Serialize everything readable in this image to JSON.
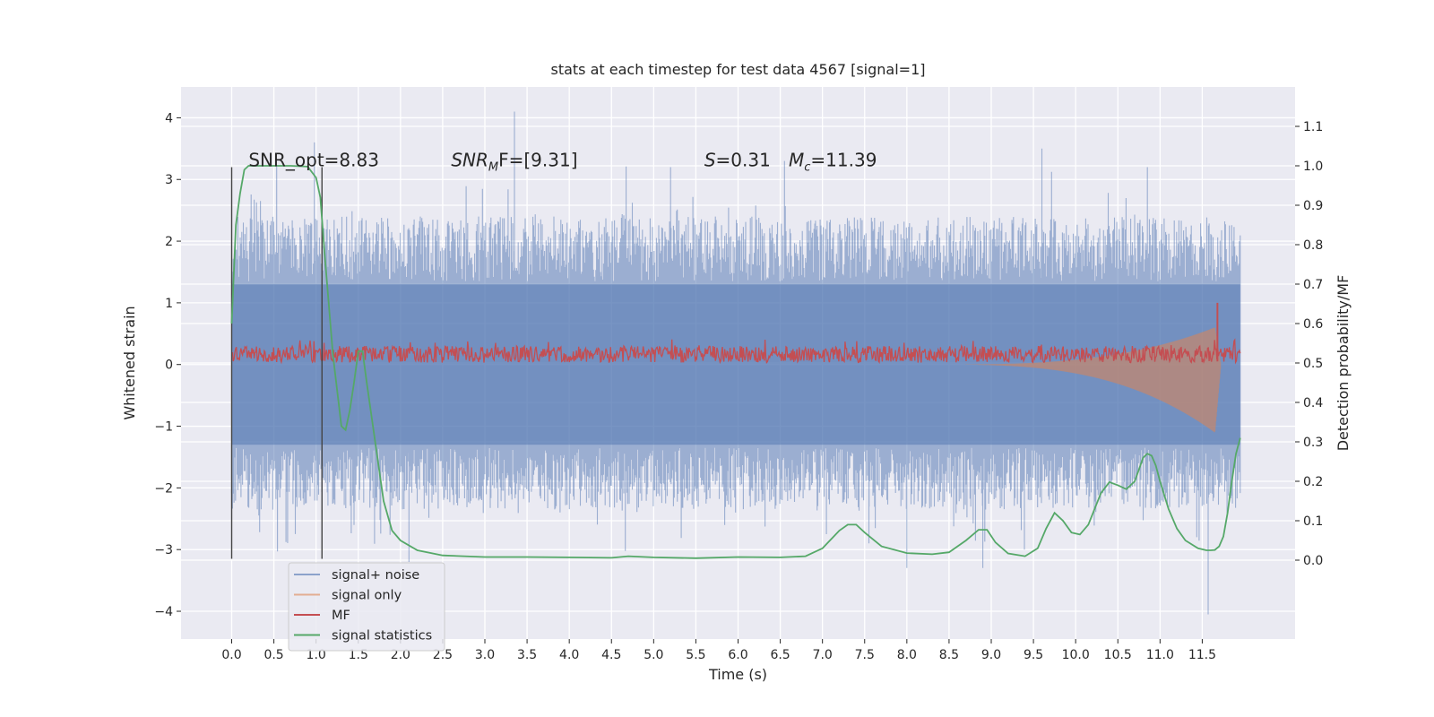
{
  "chart_data": {
    "type": "line",
    "title": "stats at each timestep for test data 4567 [signal=1]",
    "xlabel": "Time (s)",
    "ylabel": "Whitened strain",
    "ylabel_right": "Detection probability/MF",
    "xlim": [
      -0.6,
      12.6
    ],
    "ylim": [
      -4.45,
      4.5
    ],
    "ylim_right": [
      -0.2,
      1.2
    ],
    "x_ticks": [
      "0.0",
      "0.5",
      "1.0",
      "1.5",
      "2.0",
      "2.5",
      "3.0",
      "3.5",
      "4.0",
      "4.5",
      "5.0",
      "5.5",
      "6.0",
      "6.5",
      "7.0",
      "7.5",
      "8.0",
      "8.5",
      "9.0",
      "9.5",
      "10.0",
      "10.5",
      "11.0",
      "11.5"
    ],
    "y_ticks_left": [
      "4",
      "3",
      "2",
      "1",
      "0",
      "−1",
      "−2",
      "−3",
      "−4"
    ],
    "y_ticks_right": [
      "1.1",
      "1.0",
      "0.9",
      "0.8",
      "0.7",
      "0.6",
      "0.5",
      "0.4",
      "0.3",
      "0.2",
      "0.1",
      "0.0"
    ],
    "grid": true,
    "legend_placement": "bottom-left",
    "colors": {
      "background": "#eaeaf2",
      "noise": "#4c72b0",
      "signal": "#dd8452",
      "mf": "#c44e52",
      "stats": "#55a868",
      "marker": "#444444"
    },
    "annotations": {
      "snr_opt": "SNR_opt=8.83",
      "snr_mf_base": "SNR",
      "snr_mf_sub": "M",
      "snr_mf_tail": "F=[9.31]",
      "s_base": "S",
      "s_tail": "=0.31",
      "mc_base": "M",
      "mc_sub": "c",
      "mc_tail": "=11.39"
    },
    "vertical_markers_x": [
      0.0,
      1.07
    ],
    "noise_envelope": {
      "x_range": [
        0.0,
        11.95
      ],
      "core_band": [
        -1.3,
        1.3
      ],
      "typical_peak": [
        -2.4,
        2.6
      ]
    },
    "signal_chirp": {
      "x_range": [
        8.3,
        11.72
      ],
      "peak_time": 11.65,
      "max_amplitude_upper": 0.6,
      "max_amplitude_lower": -1.1
    },
    "mf_band": {
      "x_range": [
        0.0,
        11.95
      ],
      "baseline": [
        0.03,
        0.3
      ],
      "spike_time": 11.68,
      "spike_value": 1.0
    },
    "series": [
      {
        "name": "signal statistics",
        "axis": "right",
        "x": [
          0.0,
          0.05,
          0.1,
          0.15,
          0.2,
          0.3,
          0.5,
          0.7,
          0.9,
          1.0,
          1.05,
          1.1,
          1.2,
          1.3,
          1.35,
          1.4,
          1.45,
          1.5,
          1.55,
          1.6,
          1.7,
          1.8,
          1.9,
          2.0,
          2.2,
          2.5,
          3.0,
          3.5,
          4.0,
          4.5,
          4.7,
          5.0,
          5.5,
          6.0,
          6.5,
          6.8,
          7.0,
          7.2,
          7.3,
          7.4,
          7.5,
          7.7,
          8.0,
          8.3,
          8.5,
          8.7,
          8.85,
          8.95,
          9.05,
          9.2,
          9.4,
          9.55,
          9.65,
          9.75,
          9.85,
          9.95,
          10.05,
          10.15,
          10.3,
          10.4,
          10.5,
          10.6,
          10.7,
          10.8,
          10.85,
          10.9,
          10.95,
          11.0,
          11.1,
          11.2,
          11.3,
          11.45,
          11.55,
          11.6,
          11.65,
          11.7,
          11.75,
          11.8,
          11.85,
          11.9,
          11.95
        ],
        "y": [
          0.6,
          0.85,
          0.93,
          0.99,
          1.0,
          1.0,
          1.0,
          1.0,
          0.998,
          0.97,
          0.92,
          0.78,
          0.52,
          0.34,
          0.33,
          0.38,
          0.45,
          0.53,
          0.53,
          0.45,
          0.3,
          0.15,
          0.075,
          0.05,
          0.025,
          0.012,
          0.008,
          0.008,
          0.007,
          0.006,
          0.01,
          0.007,
          0.005,
          0.008,
          0.007,
          0.01,
          0.03,
          0.075,
          0.09,
          0.09,
          0.07,
          0.035,
          0.018,
          0.015,
          0.02,
          0.05,
          0.077,
          0.077,
          0.045,
          0.017,
          0.01,
          0.03,
          0.08,
          0.12,
          0.1,
          0.07,
          0.065,
          0.09,
          0.17,
          0.198,
          0.19,
          0.18,
          0.2,
          0.26,
          0.27,
          0.265,
          0.24,
          0.2,
          0.13,
          0.08,
          0.05,
          0.03,
          0.025,
          0.025,
          0.026,
          0.035,
          0.06,
          0.12,
          0.2,
          0.27,
          0.31
        ]
      }
    ],
    "legend": [
      "signal+ noise",
      "signal only",
      "MF",
      "signal statistics"
    ]
  }
}
